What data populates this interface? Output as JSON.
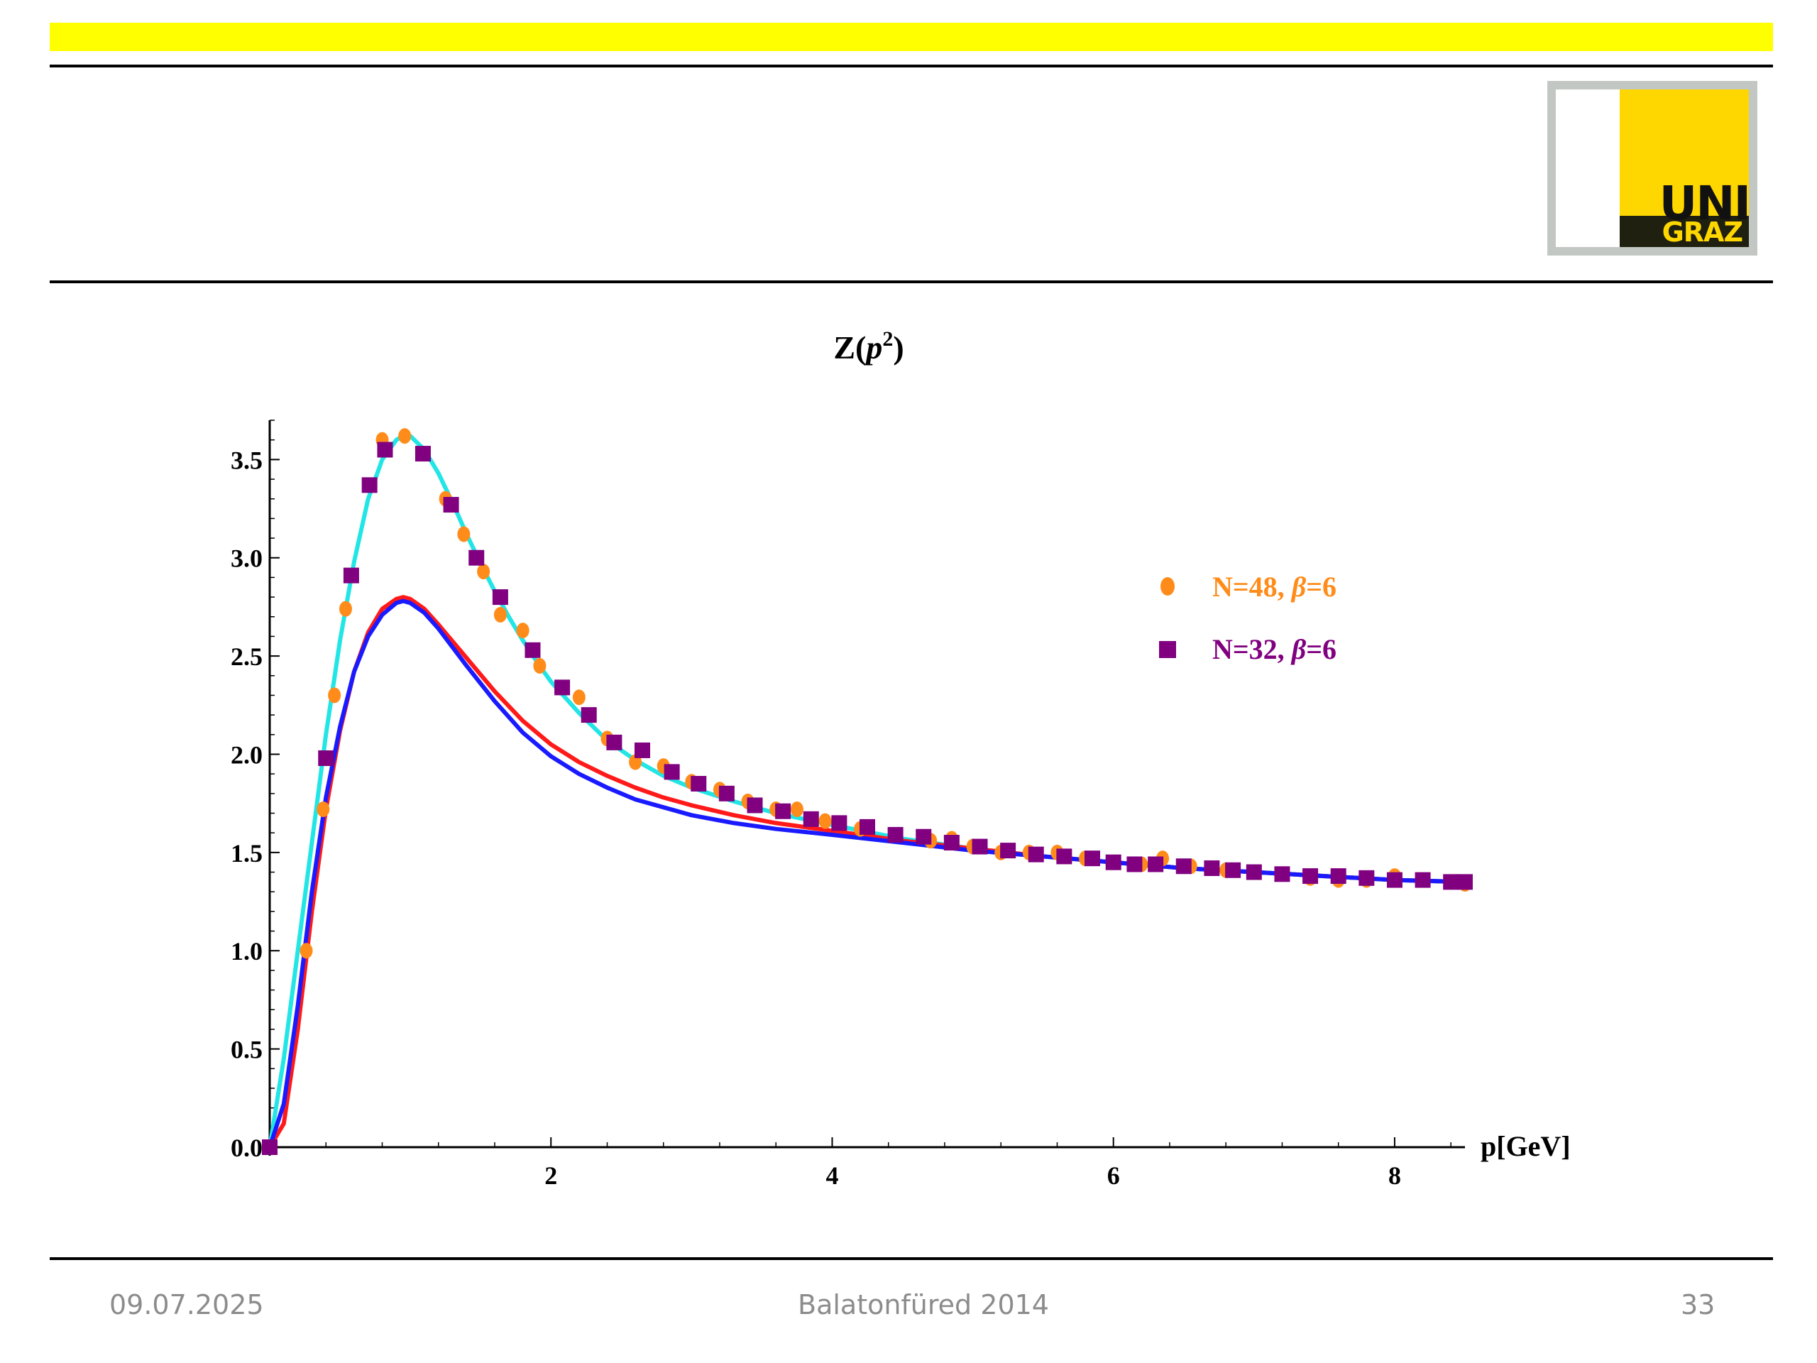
{
  "colors": {
    "banner": "#ffff00",
    "logo_yellow": "#ffd700",
    "logo_dark": "#202010",
    "series_48": "#ff8c1a",
    "series_32": "#800080",
    "fit_curve": "#22e5e5",
    "red_curve": "#ff1a1a",
    "blue_curve": "#1a1aff"
  },
  "logo": {
    "line1": "UNI",
    "line2": "GRAZ"
  },
  "footer": {
    "date": "09.07.2025",
    "event": "Balatonfüred 2014",
    "page": "33"
  },
  "chart_data": {
    "type": "scatter",
    "title_base": "Z(",
    "title_var": "p",
    "title_sup": "2",
    "title_close": ")",
    "xlabel": "p[GeV]",
    "ylabel": "",
    "xlim": [
      0,
      8.5
    ],
    "ylim": [
      0,
      3.7
    ],
    "x_ticks": [
      "2",
      "4",
      "6",
      "8"
    ],
    "y_ticks": [
      "0.0",
      "0.5",
      "1.0",
      "1.5",
      "2.0",
      "2.5",
      "3.0",
      "3.5"
    ],
    "legend_position": "top-right",
    "series": [
      {
        "name": "N=48, β=6",
        "legend_text": "N=48,",
        "legend_beta": "β",
        "legend_suffix": "=6",
        "marker": "circle",
        "x": [
          0.0,
          0.26,
          0.38,
          0.46,
          0.54,
          0.8,
          0.96,
          1.25,
          1.38,
          1.52,
          1.64,
          1.8,
          1.92,
          2.2,
          2.4,
          2.6,
          2.8,
          3.0,
          3.2,
          3.4,
          3.6,
          3.75,
          3.95,
          4.2,
          4.45,
          4.7,
          4.85,
          5.0,
          5.2,
          5.4,
          5.6,
          5.8,
          6.0,
          6.2,
          6.35,
          6.55,
          6.8,
          7.0,
          7.2,
          7.4,
          7.6,
          7.8,
          8.0,
          8.2,
          8.5
        ],
        "y": [
          0.0,
          1.0,
          1.72,
          2.3,
          2.74,
          3.6,
          3.62,
          3.3,
          3.12,
          2.93,
          2.71,
          2.63,
          2.45,
          2.29,
          2.08,
          1.96,
          1.94,
          1.86,
          1.82,
          1.76,
          1.72,
          1.72,
          1.66,
          1.62,
          1.59,
          1.56,
          1.57,
          1.53,
          1.5,
          1.5,
          1.5,
          1.47,
          1.45,
          1.44,
          1.47,
          1.43,
          1.41,
          1.4,
          1.39,
          1.37,
          1.36,
          1.36,
          1.38,
          1.36,
          1.34
        ]
      },
      {
        "name": "N=32, β=6",
        "legend_text": "N=32,",
        "legend_beta": "β",
        "legend_suffix": "=6",
        "marker": "square",
        "x": [
          0.0,
          0.4,
          0.58,
          0.71,
          0.82,
          1.09,
          1.29,
          1.47,
          1.64,
          1.87,
          2.08,
          2.27,
          2.45,
          2.65,
          2.86,
          3.05,
          3.25,
          3.45,
          3.65,
          3.85,
          4.05,
          4.25,
          4.45,
          4.65,
          4.85,
          5.05,
          5.25,
          5.45,
          5.65,
          5.85,
          6.0,
          6.15,
          6.3,
          6.5,
          6.7,
          6.85,
          7.0,
          7.2,
          7.4,
          7.6,
          7.8,
          8.0,
          8.2,
          8.4,
          8.5
        ],
        "y": [
          0.0,
          1.98,
          2.91,
          3.37,
          3.55,
          3.53,
          3.27,
          3.0,
          2.8,
          2.53,
          2.34,
          2.2,
          2.06,
          2.02,
          1.91,
          1.85,
          1.8,
          1.74,
          1.71,
          1.67,
          1.65,
          1.63,
          1.59,
          1.58,
          1.55,
          1.53,
          1.51,
          1.49,
          1.48,
          1.47,
          1.45,
          1.44,
          1.44,
          1.43,
          1.42,
          1.41,
          1.4,
          1.39,
          1.38,
          1.38,
          1.37,
          1.36,
          1.36,
          1.35,
          1.35
        ]
      }
    ],
    "curves": [
      {
        "color_key": "fit_curve",
        "x": [
          0,
          0.1,
          0.2,
          0.3,
          0.4,
          0.5,
          0.6,
          0.7,
          0.8,
          0.9,
          0.95,
          1.0,
          1.1,
          1.2,
          1.3,
          1.4,
          1.5,
          1.6,
          1.7,
          1.8,
          1.9,
          2.0,
          2.2,
          2.4,
          2.6,
          2.8,
          3.0,
          3.3,
          3.6,
          4.0,
          4.5,
          5.0,
          5.5,
          6.0,
          6.5,
          7.0,
          7.5,
          8.0,
          8.5
        ],
        "y": [
          0,
          0.45,
          1.0,
          1.55,
          2.1,
          2.58,
          2.98,
          3.3,
          3.5,
          3.6,
          3.62,
          3.62,
          3.55,
          3.43,
          3.28,
          3.12,
          2.97,
          2.83,
          2.7,
          2.58,
          2.47,
          2.37,
          2.21,
          2.07,
          1.97,
          1.89,
          1.83,
          1.76,
          1.7,
          1.64,
          1.57,
          1.52,
          1.48,
          1.45,
          1.42,
          1.4,
          1.38,
          1.36,
          1.35
        ]
      },
      {
        "color_key": "red_curve",
        "x": [
          0,
          0.1,
          0.2,
          0.3,
          0.4,
          0.5,
          0.6,
          0.7,
          0.8,
          0.9,
          0.95,
          1.0,
          1.1,
          1.2,
          1.4,
          1.6,
          1.8,
          2.0,
          2.2,
          2.4,
          2.6,
          2.8,
          3.0,
          3.3,
          3.6,
          4.0,
          4.5,
          5.0,
          5.5,
          6.0,
          6.5,
          7.0,
          7.5,
          8.0,
          8.5
        ],
        "y": [
          0,
          0.12,
          0.6,
          1.2,
          1.72,
          2.12,
          2.42,
          2.62,
          2.74,
          2.79,
          2.8,
          2.79,
          2.74,
          2.66,
          2.49,
          2.32,
          2.17,
          2.05,
          1.96,
          1.89,
          1.83,
          1.78,
          1.74,
          1.69,
          1.65,
          1.61,
          1.56,
          1.52,
          1.48,
          1.45,
          1.42,
          1.4,
          1.38,
          1.36,
          1.35
        ]
      },
      {
        "color_key": "blue_curve",
        "x": [
          0,
          0.1,
          0.2,
          0.3,
          0.4,
          0.5,
          0.6,
          0.7,
          0.8,
          0.9,
          0.95,
          1.0,
          1.1,
          1.2,
          1.4,
          1.6,
          1.8,
          2.0,
          2.2,
          2.4,
          2.6,
          2.8,
          3.0,
          3.3,
          3.6,
          4.0,
          4.5,
          5.0,
          5.5,
          6.0,
          6.5,
          7.0,
          7.5,
          8.0,
          8.5
        ],
        "y": [
          0,
          0.22,
          0.72,
          1.3,
          1.78,
          2.14,
          2.42,
          2.6,
          2.71,
          2.77,
          2.78,
          2.77,
          2.72,
          2.64,
          2.45,
          2.27,
          2.11,
          1.99,
          1.9,
          1.83,
          1.77,
          1.73,
          1.69,
          1.65,
          1.62,
          1.59,
          1.55,
          1.51,
          1.48,
          1.45,
          1.42,
          1.4,
          1.38,
          1.36,
          1.35
        ]
      }
    ]
  }
}
